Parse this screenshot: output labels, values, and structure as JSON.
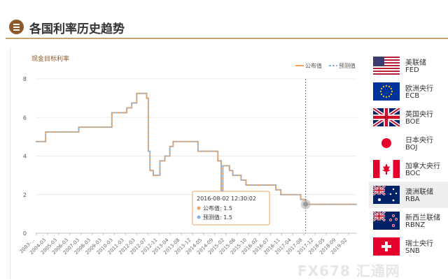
{
  "header": {
    "title": "各国利率历史趋势"
  },
  "chart_data": {
    "type": "line",
    "title": "现金目标利率",
    "xlabel": "",
    "ylabel": "",
    "ylim": [
      0,
      8
    ],
    "yticks": [
      "0",
      "2",
      "4",
      "6",
      "8"
    ],
    "xticks": [
      "2003-...",
      "2004-03",
      "2005-03",
      "2006-03",
      "2007-03",
      "2008-03",
      "2009-03",
      "2010-03",
      "2011-03",
      "2012-03",
      "2012-07",
      "2012-11",
      "2013-04",
      "2013-08",
      "2013-12",
      "2014-05",
      "2014-09",
      "2015-02",
      "2015-06",
      "2015-10",
      "2016-02",
      "2016-07",
      "2016-11",
      "2017-04",
      "2017-08",
      "2017-12",
      "2018-05",
      "2018-09",
      "2019-02"
    ],
    "x": [
      "2003-01",
      "2003-03",
      "2003-05",
      "2003-07",
      "2003-09",
      "2003-11",
      "2004-01",
      "2004-03",
      "2005-03",
      "2006-03",
      "2006-05",
      "2006-08",
      "2006-11",
      "2007-03",
      "2007-08",
      "2007-11",
      "2008-02",
      "2008-03",
      "2008-08",
      "2008-09",
      "2008-10",
      "2008-12",
      "2009-02",
      "2009-03",
      "2009-04",
      "2009-07",
      "2009-10",
      "2009-11",
      "2009-12",
      "2010-03",
      "2010-04",
      "2010-05",
      "2010-11",
      "2011-03",
      "2011-11",
      "2011-12",
      "2012-03",
      "2012-05",
      "2012-06",
      "2012-07",
      "2012-10",
      "2012-12",
      "2013-05",
      "2013-08",
      "2013-12",
      "2014-05",
      "2014-09",
      "2015-02",
      "2015-05",
      "2015-06",
      "2015-10",
      "2016-02",
      "2016-05",
      "2016-07",
      "2016-08",
      "2016-11",
      "2017-04",
      "2017-08",
      "2017-12",
      "2018-05",
      "2018-09",
      "2019-02",
      "2019-03"
    ],
    "series": [
      {
        "name": "公布值",
        "color": "#f0a35c",
        "values": [
          4.75,
          4.75,
          4.75,
          5.25,
          5.25,
          5.25,
          5.25,
          5.25,
          5.5,
          5.5,
          5.5,
          5.5,
          6.25,
          6.25,
          6.5,
          6.75,
          7.25,
          7.25,
          7.0,
          4.25,
          3.25,
          3.0,
          3.0,
          3.0,
          3.75,
          4.0,
          4.5,
          4.5,
          4.75,
          4.75,
          4.75,
          4.75,
          4.75,
          4.25,
          4.25,
          4.25,
          3.75,
          2.0,
          3.5,
          3.5,
          3.25,
          3.0,
          2.75,
          2.5,
          2.5,
          2.5,
          2.5,
          2.25,
          2.0,
          2.0,
          2.0,
          2.0,
          1.75,
          1.75,
          1.5,
          1.5,
          1.5,
          1.5,
          1.5,
          1.5,
          1.5,
          1.5,
          1.5
        ]
      },
      {
        "name": "预测值",
        "color": "#7cb5ec",
        "values": [
          4.75,
          4.75,
          4.75,
          5.25,
          5.25,
          5.25,
          5.25,
          5.25,
          5.5,
          5.5,
          5.5,
          5.5,
          6.25,
          6.25,
          6.5,
          6.75,
          7.25,
          7.25,
          7.0,
          4.25,
          3.25,
          3.0,
          3.0,
          3.0,
          3.75,
          4.0,
          4.5,
          4.5,
          4.75,
          4.75,
          4.75,
          4.75,
          4.75,
          4.25,
          4.25,
          4.25,
          3.75,
          2.0,
          3.5,
          3.5,
          3.25,
          3.0,
          2.75,
          2.5,
          2.5,
          2.5,
          2.5,
          2.25,
          2.0,
          2.0,
          2.0,
          2.0,
          1.75,
          1.75,
          1.5,
          1.5,
          1.5,
          1.5,
          1.5,
          1.5,
          1.5,
          1.5,
          1.5
        ]
      }
    ],
    "legend": "top-right",
    "grid": true,
    "crosshair_x": "2016-08",
    "tooltip": {
      "title": "2016-08-02 12:30:02",
      "rows": [
        "公布值: 1.5",
        "预测值: 1.5"
      ]
    }
  },
  "banks": [
    {
      "name": "美联储",
      "code": "FED",
      "flag": "us",
      "active": false
    },
    {
      "name": "欧洲央行",
      "code": "ECB",
      "flag": "eu",
      "active": false
    },
    {
      "name": "英国央行",
      "code": "BOE",
      "flag": "uk",
      "active": false
    },
    {
      "name": "日本央行",
      "code": "BOJ",
      "flag": "jp",
      "active": false
    },
    {
      "name": "加拿大央行",
      "code": "BOC",
      "flag": "ca",
      "active": false
    },
    {
      "name": "澳洲联储",
      "code": "RBA",
      "flag": "au",
      "active": true
    },
    {
      "name": "新西兰联储",
      "code": "RBNZ",
      "flag": "nz",
      "active": false
    },
    {
      "name": "瑞士央行",
      "code": "SNB",
      "flag": "ch",
      "active": false
    }
  ],
  "watermark": "FX678 汇通网"
}
